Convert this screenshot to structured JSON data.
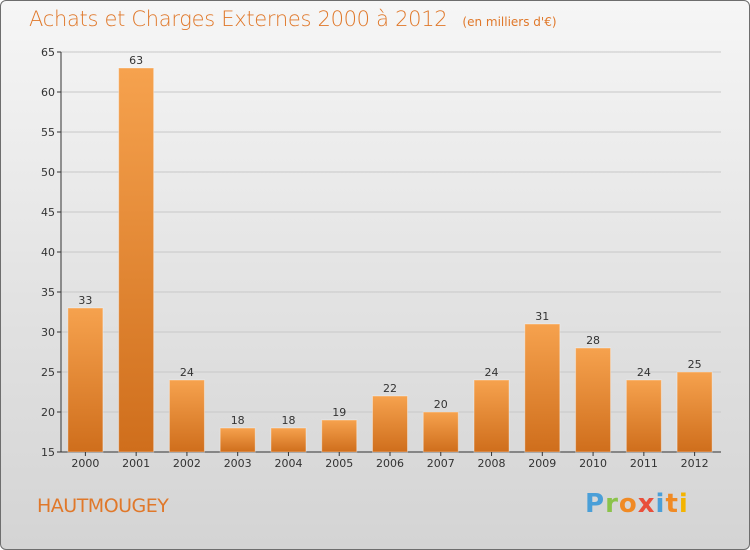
{
  "header": {
    "title": "Achats et Charges Externes 2000 à 2012",
    "unit": "(en milliers d'€)"
  },
  "footer": {
    "place": "HAUTMOUGEY",
    "logo_letters": [
      "P",
      "r",
      "o",
      "x",
      "i",
      "t",
      "i"
    ]
  },
  "colors": {
    "accent": "#e0782a",
    "bar_light": "#f6a24e",
    "bar_dark": "#cf6e1c",
    "axis": "#333333",
    "grid": "#c8c8c8"
  },
  "chart_data": {
    "type": "bar",
    "title": "Achats et Charges Externes 2000 à 2012",
    "subtitle": "(en milliers d'€)",
    "categories": [
      "2000",
      "2001",
      "2002",
      "2003",
      "2004",
      "2005",
      "2006",
      "2007",
      "2008",
      "2009",
      "2010",
      "2011",
      "2012"
    ],
    "values": [
      33,
      63,
      24,
      18,
      18,
      19,
      22,
      20,
      24,
      31,
      28,
      24,
      25
    ],
    "ylim": [
      15,
      65
    ],
    "yticks": [
      15,
      20,
      25,
      30,
      35,
      40,
      45,
      50,
      55,
      60,
      65
    ],
    "xlabel": "",
    "ylabel": "",
    "grid": true,
    "data_labels": true
  }
}
